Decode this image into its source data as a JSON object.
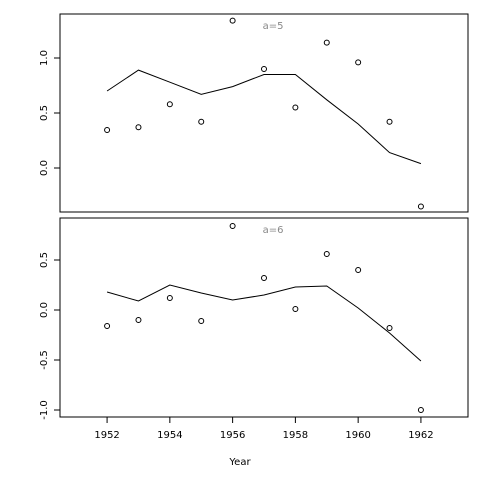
{
  "chart_data": [
    {
      "type": "line",
      "title": "a=5",
      "x": [
        1952,
        1953,
        1954,
        1955,
        1956,
        1957,
        1958,
        1959,
        1960,
        1961,
        1962
      ],
      "series": [
        {
          "style": "points",
          "color": "#000000",
          "values": [
            0.345,
            0.37,
            0.58,
            0.42,
            1.34,
            0.9,
            0.55,
            1.14,
            0.96,
            0.42,
            -0.35
          ]
        },
        {
          "style": "line",
          "color": "#000000",
          "values": [
            0.7,
            0.89,
            0.78,
            0.67,
            0.74,
            0.85,
            0.85,
            0.62,
            0.4,
            0.14,
            0.04
          ]
        }
      ],
      "xlim": [
        1950.5,
        1963.5
      ],
      "ylim": [
        -0.4,
        1.4
      ],
      "yticks": [
        {
          "value": 0,
          "label": "0.0"
        },
        {
          "value": 0.5,
          "label": "0.5"
        },
        {
          "value": 1,
          "label": "1.0"
        }
      ]
    },
    {
      "type": "line",
      "title": "a=6",
      "x": [
        1952,
        1953,
        1954,
        1955,
        1956,
        1957,
        1958,
        1959,
        1960,
        1961,
        1962
      ],
      "series": [
        {
          "style": "points",
          "color": "#000000",
          "values": [
            -0.16,
            -0.1,
            0.12,
            -0.11,
            0.84,
            0.32,
            0.01,
            0.56,
            0.4,
            -0.18,
            -1.0
          ]
        },
        {
          "style": "line",
          "color": "#000000",
          "values": [
            0.18,
            0.09,
            0.25,
            0.17,
            0.1,
            0.15,
            0.23,
            0.24,
            0.02,
            -0.23,
            -0.51
          ]
        }
      ],
      "xlim": [
        1950.5,
        1963.5
      ],
      "ylim": [
        -1.07,
        0.92
      ],
      "yticks": [
        {
          "value": -1,
          "label": "-1.0"
        },
        {
          "value": -0.5,
          "label": "-0.5"
        },
        {
          "value": 0,
          "label": "0.0"
        },
        {
          "value": 0.5,
          "label": "0.5"
        }
      ],
      "xticks": [
        1952,
        1954,
        1956,
        1958,
        1960,
        1962
      ],
      "xlabel": "Year"
    }
  ]
}
